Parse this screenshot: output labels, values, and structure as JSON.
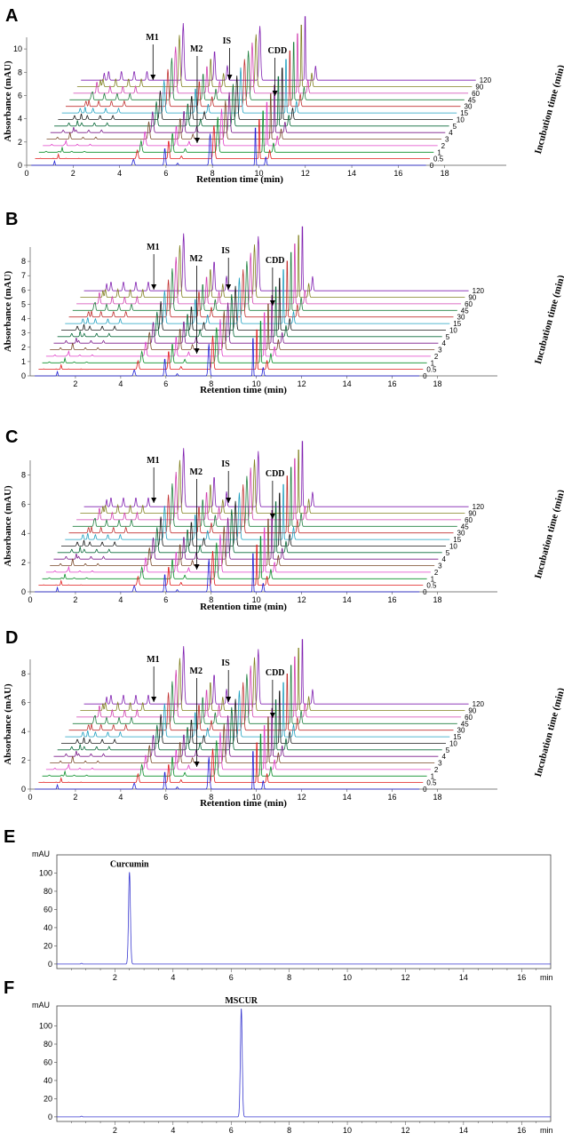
{
  "figure": {
    "panels": [
      "A",
      "B",
      "C",
      "D",
      "E",
      "F"
    ]
  },
  "chart_data": [
    {
      "id": "A",
      "type": "line",
      "title": "",
      "xlabel": "Retention time (min)",
      "ylabel": "Absorbance (mAU)",
      "zlabel": "Incubation time (min)",
      "xlim": [
        0,
        19
      ],
      "ylim": [
        0,
        11
      ],
      "xticks": [
        0,
        2,
        4,
        6,
        8,
        10,
        12,
        14,
        16,
        18
      ],
      "yticks": [
        0,
        2,
        4,
        6,
        8,
        10
      ],
      "series_labels": [
        "0",
        "0.5",
        "1",
        "2",
        "3",
        "4",
        "5",
        "10",
        "15",
        "30",
        "45",
        "60",
        "90",
        "120"
      ],
      "peak_labels": [
        "M1",
        "M2",
        "IS",
        "CDD"
      ],
      "peaks": [
        {
          "name": "M1",
          "x": 4.6
        },
        {
          "name": "M2",
          "x": 6.5
        },
        {
          "name": "IS",
          "x": 7.9
        },
        {
          "name": "CDD",
          "x": 9.85
        }
      ]
    },
    {
      "id": "B",
      "type": "line",
      "title": "",
      "xlabel": "Retention time (min)",
      "ylabel": "Absorbance (mAU)",
      "zlabel": "Incubation time (min)",
      "xlim": [
        0,
        19
      ],
      "ylim": [
        0,
        9
      ],
      "xticks": [
        2,
        4,
        6,
        8,
        10,
        12,
        14,
        16,
        18
      ],
      "yticks": [
        0,
        1,
        2,
        3,
        4,
        5,
        6,
        7,
        8
      ],
      "series_labels": [
        "0",
        "0.5",
        "1",
        "2",
        "3",
        "4",
        "5",
        "10",
        "15",
        "30",
        "45",
        "60",
        "90",
        "120"
      ],
      "peak_labels": [
        "M1",
        "M2",
        "IS",
        "CDD"
      ],
      "peaks": [
        {
          "name": "M1",
          "x": 4.6
        },
        {
          "name": "M2",
          "x": 6.5
        },
        {
          "name": "IS",
          "x": 7.9
        },
        {
          "name": "CDD",
          "x": 9.85
        }
      ]
    },
    {
      "id": "C",
      "type": "line",
      "title": "",
      "xlabel": "Retention time (min)",
      "ylabel": "Absorbance (mAU)",
      "zlabel": "Incubation time (min)",
      "xlim": [
        0,
        19
      ],
      "ylim": [
        0,
        9
      ],
      "xticks": [
        0,
        2,
        4,
        6,
        8,
        10,
        12,
        14,
        16,
        18
      ],
      "yticks": [
        0,
        2,
        4,
        6,
        8
      ],
      "series_labels": [
        "0",
        "0.5",
        "1",
        "2",
        "3",
        "4",
        "5",
        "10",
        "15",
        "30",
        "45",
        "60",
        "90",
        "120"
      ],
      "peak_labels": [
        "M1",
        "M2",
        "IS",
        "CDD"
      ],
      "peaks": [
        {
          "name": "M1",
          "x": 4.6
        },
        {
          "name": "M2",
          "x": 6.5
        },
        {
          "name": "IS",
          "x": 7.9
        },
        {
          "name": "CDD",
          "x": 9.85
        }
      ]
    },
    {
      "id": "D",
      "type": "line",
      "title": "",
      "xlabel": "Retention time (min)",
      "ylabel": "Absorbance (mAU)",
      "zlabel": "Incubation time (min)",
      "xlim": [
        0,
        19
      ],
      "ylim": [
        0,
        9
      ],
      "xticks": [
        0,
        2,
        4,
        6,
        8,
        10,
        12,
        14,
        16,
        18
      ],
      "yticks": [
        0,
        2,
        4,
        6,
        8
      ],
      "series_labels": [
        "0",
        "0.5",
        "1",
        "2",
        "3",
        "4",
        "5",
        "10",
        "15",
        "30",
        "45",
        "60",
        "90",
        "120"
      ],
      "peak_labels": [
        "M1",
        "M2",
        "IS",
        "CDD"
      ],
      "peaks": [
        {
          "name": "M1",
          "x": 4.6
        },
        {
          "name": "M2",
          "x": 6.5
        },
        {
          "name": "IS",
          "x": 7.9
        },
        {
          "name": "CDD",
          "x": 9.85
        }
      ]
    },
    {
      "id": "E",
      "type": "line",
      "title": "",
      "xlabel": "min",
      "ylabel": "mAU",
      "xlim": [
        0,
        17
      ],
      "ylim": [
        -5,
        120
      ],
      "xticks": [
        2,
        4,
        6,
        8,
        10,
        12,
        14,
        16
      ],
      "yticks": [
        0,
        20,
        40,
        60,
        80,
        100
      ],
      "peak_label": "Curcumin",
      "peak_x": 2.5,
      "peak_height": 101
    },
    {
      "id": "F",
      "type": "line",
      "title": "",
      "xlabel": "min",
      "ylabel": "mAU",
      "xlim": [
        0,
        17
      ],
      "ylim": [
        -5,
        122
      ],
      "xticks": [
        2,
        4,
        6,
        8,
        10,
        12,
        14,
        16
      ],
      "yticks": [
        0,
        20,
        40,
        60,
        80,
        100
      ],
      "peak_label": "MSCUR",
      "peak_x": 6.35,
      "peak_height": 119
    }
  ]
}
